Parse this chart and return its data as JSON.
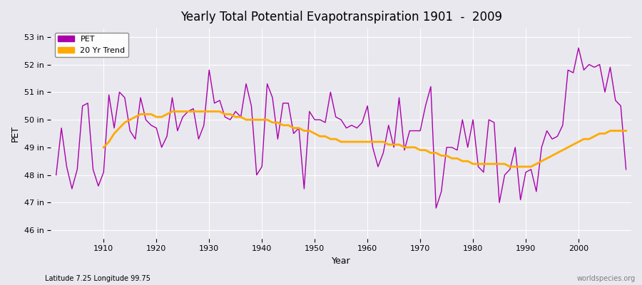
{
  "title": "Yearly Total Potential Evapotranspiration 1901  -  2009",
  "ylabel": "PET",
  "xlabel": "Year",
  "subtitle": "Latitude 7.25 Longitude 99.75",
  "watermark": "worldspecies.org",
  "pet_color": "#aa00aa",
  "trend_color": "#ffaa00",
  "bg_color": "#e8e8ee",
  "plot_bg_color": "#e8e8ee",
  "ylim": [
    45.7,
    53.3
  ],
  "ytick_labels": [
    "46 in",
    "47 in",
    "48 in",
    "49 in",
    "50 in",
    "51 in",
    "52 in",
    "53 in"
  ],
  "ytick_values": [
    46,
    47,
    48,
    49,
    50,
    51,
    52,
    53
  ],
  "years": [
    1901,
    1902,
    1903,
    1904,
    1905,
    1906,
    1907,
    1908,
    1909,
    1910,
    1911,
    1912,
    1913,
    1914,
    1915,
    1916,
    1917,
    1918,
    1919,
    1920,
    1921,
    1922,
    1923,
    1924,
    1925,
    1926,
    1927,
    1928,
    1929,
    1930,
    1931,
    1932,
    1933,
    1934,
    1935,
    1936,
    1937,
    1938,
    1939,
    1940,
    1941,
    1942,
    1943,
    1944,
    1945,
    1946,
    1947,
    1948,
    1949,
    1950,
    1951,
    1952,
    1953,
    1954,
    1955,
    1956,
    1957,
    1958,
    1959,
    1960,
    1961,
    1962,
    1963,
    1964,
    1965,
    1966,
    1967,
    1968,
    1969,
    1970,
    1971,
    1972,
    1973,
    1974,
    1975,
    1976,
    1977,
    1978,
    1979,
    1980,
    1981,
    1982,
    1983,
    1984,
    1985,
    1986,
    1987,
    1988,
    1989,
    1990,
    1991,
    1992,
    1993,
    1994,
    1995,
    1996,
    1997,
    1998,
    1999,
    2000,
    2001,
    2002,
    2003,
    2004,
    2005,
    2006,
    2007,
    2008,
    2009
  ],
  "pet_values": [
    48.0,
    49.7,
    48.3,
    47.5,
    48.2,
    50.5,
    50.6,
    48.2,
    47.6,
    48.1,
    50.9,
    49.7,
    51.0,
    50.8,
    49.6,
    49.3,
    50.8,
    50.0,
    49.8,
    49.7,
    49.0,
    49.4,
    50.8,
    49.6,
    50.1,
    50.3,
    50.4,
    49.3,
    49.8,
    51.8,
    50.6,
    50.7,
    50.1,
    50.0,
    50.3,
    50.1,
    51.3,
    50.5,
    48.0,
    48.3,
    51.3,
    50.8,
    49.3,
    50.6,
    50.6,
    49.5,
    49.7,
    47.5,
    50.3,
    50.0,
    50.0,
    49.9,
    51.0,
    50.1,
    50.0,
    49.7,
    49.8,
    49.7,
    49.9,
    50.5,
    49.0,
    48.3,
    48.8,
    49.8,
    49.0,
    50.8,
    48.9,
    49.6,
    49.6,
    49.6,
    50.5,
    51.2,
    46.8,
    47.4,
    49.0,
    49.0,
    48.9,
    50.0,
    49.0,
    50.0,
    48.3,
    48.1,
    50.0,
    49.9,
    47.0,
    48.0,
    48.2,
    49.0,
    47.1,
    48.1,
    48.2,
    47.4,
    49.0,
    49.6,
    49.3,
    49.4,
    49.8,
    51.8,
    51.7,
    52.6,
    51.8,
    52.0,
    51.9,
    52.0,
    51.0,
    51.9,
    50.7,
    50.5,
    48.2
  ],
  "trend_years": [
    1910,
    1911,
    1912,
    1913,
    1914,
    1915,
    1916,
    1917,
    1918,
    1919,
    1920,
    1921,
    1922,
    1923,
    1924,
    1925,
    1926,
    1927,
    1928,
    1929,
    1930,
    1931,
    1932,
    1933,
    1934,
    1935,
    1936,
    1937,
    1938,
    1939,
    1940,
    1941,
    1942,
    1943,
    1944,
    1945,
    1946,
    1947,
    1948,
    1949,
    1950,
    1951,
    1952,
    1953,
    1954,
    1955,
    1956,
    1957,
    1958,
    1959,
    1960,
    1961,
    1962,
    1963,
    1964,
    1965,
    1966,
    1967,
    1968,
    1969,
    1970,
    1971,
    1972,
    1973,
    1974,
    1975,
    1976,
    1977,
    1978,
    1979,
    1980,
    1981,
    1982,
    1983,
    1984,
    1985,
    1986,
    1987,
    1988,
    1989,
    1990,
    1991,
    1992,
    1993,
    1994,
    1995,
    1996,
    1997,
    1998,
    1999,
    2000,
    2001,
    2002,
    2003,
    2004,
    2005,
    2006,
    2007,
    2008,
    2009
  ],
  "trend_values": [
    49.0,
    49.2,
    49.5,
    49.7,
    49.9,
    50.0,
    50.1,
    50.2,
    50.2,
    50.2,
    50.1,
    50.1,
    50.2,
    50.3,
    50.3,
    50.3,
    50.3,
    50.3,
    50.3,
    50.3,
    50.3,
    50.3,
    50.3,
    50.2,
    50.2,
    50.1,
    50.1,
    50.0,
    50.0,
    50.0,
    50.0,
    50.0,
    49.9,
    49.9,
    49.8,
    49.8,
    49.7,
    49.7,
    49.6,
    49.6,
    49.5,
    49.4,
    49.4,
    49.3,
    49.3,
    49.2,
    49.2,
    49.2,
    49.2,
    49.2,
    49.2,
    49.2,
    49.2,
    49.2,
    49.1,
    49.1,
    49.1,
    49.0,
    49.0,
    49.0,
    48.9,
    48.9,
    48.8,
    48.8,
    48.7,
    48.7,
    48.6,
    48.6,
    48.5,
    48.5,
    48.4,
    48.4,
    48.4,
    48.4,
    48.4,
    48.4,
    48.4,
    48.3,
    48.3,
    48.3,
    48.3,
    48.3,
    48.4,
    48.5,
    48.6,
    48.7,
    48.8,
    48.9,
    49.0,
    49.1,
    49.2,
    49.3,
    49.3,
    49.4,
    49.5,
    49.5,
    49.6,
    49.6,
    49.6,
    49.6
  ]
}
